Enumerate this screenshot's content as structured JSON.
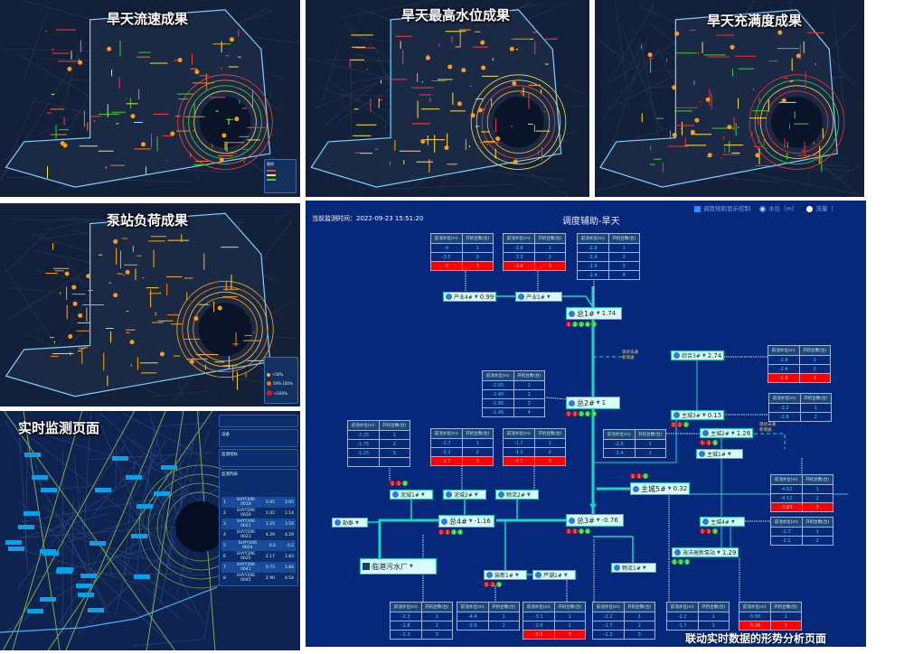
{
  "panels": {
    "flow": {
      "title": "旱天流速成果",
      "legend_title": "图例",
      "line_colors": [
        "#ff3b3b",
        "#ffe23a",
        "#3ad23a"
      ]
    },
    "level": {
      "title": "旱天最高水位成果"
    },
    "fill": {
      "title": "旱天充满度成果"
    },
    "pump": {
      "title": "泵站负荷成果",
      "legend_items": [
        "<50%",
        "50%-100%",
        ">100%"
      ]
    },
    "realtime": {
      "title": "实时监测页面",
      "sections": {
        "device": "设备",
        "indicator": "监测指标",
        "list": "监测列表"
      },
      "list_rows": [
        {
          "no": "1",
          "id": "SHYY206 0010",
          "a": "3.05",
          "b": "3.05"
        },
        {
          "no": "2",
          "id": "SHYY206 0020",
          "a": "1.02",
          "b": "1.14"
        },
        {
          "no": "3",
          "id": "SHYY206 0021",
          "a": "1.25",
          "b": "3.54"
        },
        {
          "no": "4",
          "id": "SHYY206 0023",
          "a": "4.29",
          "b": "4.29"
        },
        {
          "no": "5",
          "id": "SHYY206 0024",
          "a": "0.0",
          "b": "0.2"
        },
        {
          "no": "6",
          "id": "SHYY206 0025",
          "a": "2.17",
          "b": "2.83"
        },
        {
          "no": "7",
          "id": "SHYY206 0041",
          "a": "0.75",
          "b": "1.84"
        },
        {
          "no": "8",
          "id": "SHYY206 0045",
          "a": "2.90",
          "b": "4.54"
        }
      ],
      "legend_title": "图例"
    }
  },
  "dispatch": {
    "monitor_time_label": "当前监测时间：",
    "monitor_time": "2022-09-23 15:51:20",
    "title": "调度辅助-旱天",
    "controls": {
      "rule_display": "调度规则显示控制",
      "level": "水位（m）",
      "flow": "流量（"
    },
    "table_headers": [
      "前池水位(m)",
      "开机台数(台)"
    ],
    "tables": [
      {
        "station": "产业4#",
        "rows": [
          [
            "-4",
            "1"
          ],
          [
            "-3.5",
            "2"
          ],
          [
            "-3",
            "3"
          ]
        ],
        "alert_row": 2
      },
      {
        "station": "产业1#",
        "rows": [
          [
            "-3.8",
            "1"
          ],
          [
            "-3.3",
            "2"
          ],
          [
            "-2.8",
            "3"
          ]
        ],
        "alert_row": 2
      },
      {
        "station": "总1#",
        "rows": [
          [
            "-2.9",
            "1"
          ],
          [
            "-2.4",
            "2"
          ],
          [
            "-1.9",
            "3"
          ],
          [
            "-1.4",
            "4"
          ]
        ],
        "alert_row": null
      },
      {
        "station": "综合3#",
        "rows": [
          [
            "-2.9",
            "1"
          ],
          [
            "-2.4",
            "2"
          ],
          [
            "-1.9",
            "3"
          ]
        ],
        "alert_row": 2
      },
      {
        "station": "总2#",
        "rows": [
          [
            "-2.95",
            "1"
          ],
          [
            "-2.45",
            "2"
          ],
          [
            "-1.95",
            "3"
          ],
          [
            "-1.45",
            "4"
          ]
        ],
        "alert_row": null
      },
      {
        "station": "主城3#",
        "rows": [
          [
            "-3.3",
            "1"
          ],
          [
            "-2.8",
            "2"
          ]
        ],
        "alert_row": null
      },
      {
        "station": "泥城1#",
        "rows": [
          [
            "-2.25",
            "1"
          ],
          [
            "-1.75",
            "2"
          ],
          [
            "-1.25",
            "3"
          ],
          [
            "",
            ""
          ]
        ],
        "alert_row": null
      },
      {
        "station": "泥城2#",
        "rows": [
          [
            "-2.7",
            "1"
          ],
          [
            "-2.2",
            "2"
          ],
          [
            "-1.7",
            "3"
          ]
        ],
        "alert_row": 2
      },
      {
        "station": "物流2#",
        "rows": [
          [
            "-1.7",
            "1"
          ],
          [
            "-1.2",
            "2"
          ],
          [
            "-0.7",
            "3"
          ]
        ],
        "alert_row": 2
      },
      {
        "station": "主城2#",
        "rows": [
          [
            "-2.9",
            "1"
          ],
          [
            "-2.4",
            "2"
          ]
        ],
        "alert_row": null
      },
      {
        "station": "主城1#",
        "rows": [
          [
            "-4.63",
            "1"
          ],
          [
            "-4.13",
            "2"
          ],
          [
            "-3.63",
            "3"
          ]
        ],
        "alert_row": 2
      },
      {
        "station": "主城4#",
        "rows": [
          [
            "-2.7",
            "1"
          ],
          [
            "-2.2",
            "2"
          ]
        ],
        "alert_row": null
      },
      {
        "station": "总4#",
        "rows": [
          [
            "-2.3",
            "1"
          ],
          [
            "-1.8",
            "2"
          ],
          [
            "-1.3",
            "3"
          ]
        ],
        "alert_row": null
      },
      {
        "station": "装新1#",
        "rows": [
          [
            "-4.4",
            "1"
          ],
          [
            "-3.9",
            "2"
          ]
        ],
        "alert_row": null
      },
      {
        "station": "芦潮1#",
        "rows": [
          [
            "-3.1",
            "1"
          ],
          [
            "-2.6",
            "2"
          ],
          [
            "-2.1",
            "3"
          ]
        ],
        "alert_row": 2
      },
      {
        "station": "总3#",
        "rows": [
          [
            "-2.2",
            "1"
          ],
          [
            "-1.7",
            "2"
          ],
          [
            "-1.2",
            "3"
          ]
        ],
        "alert_row": null
      },
      {
        "station": "主城5#",
        "rows": [
          [
            "-2.2",
            "1"
          ],
          [
            "-1.7",
            "2"
          ]
        ],
        "alert_row": null
      },
      {
        "station": "海洋高新泵站",
        "rows": [
          [
            "-5.56",
            "1"
          ],
          [
            "-5.06",
            "2"
          ]
        ],
        "alert_row": 1
      }
    ],
    "nodes": [
      {
        "name": "产业4#",
        "value": "0.99",
        "lights": []
      },
      {
        "name": "产业1#",
        "value": "",
        "lights": []
      },
      {
        "name": "总1#",
        "value": "1.74",
        "lights": [
          "r",
          "g",
          "g",
          "g",
          "g"
        ]
      },
      {
        "name": "综合3#",
        "value": "2.74",
        "lights": []
      },
      {
        "name": "总2#",
        "value": "1",
        "lights": [
          "r",
          "r",
          "g",
          "g",
          "g"
        ]
      },
      {
        "name": "主城3#",
        "value": "0.15",
        "lights": [
          "r",
          "r",
          "g"
        ]
      },
      {
        "name": "主城2#",
        "value": "1.26",
        "lights": [
          "r",
          "r",
          "g"
        ]
      },
      {
        "name": "主城1#",
        "value": "",
        "lights": []
      },
      {
        "name": "主城5#",
        "value": "0.32",
        "lights": [
          "r",
          "r",
          "g"
        ]
      },
      {
        "name": "泥城1#",
        "value": "",
        "lights": [
          "r",
          "r",
          "g"
        ]
      },
      {
        "name": "泥城2#",
        "value": "",
        "lights": []
      },
      {
        "name": "物流2#",
        "value": "",
        "lights": []
      },
      {
        "name": "总3#",
        "value": "-0.76",
        "lights": [
          "r",
          "r",
          "g",
          "g"
        ]
      },
      {
        "name": "主城4#",
        "value": "",
        "lights": [
          "r",
          "r",
          "g"
        ]
      },
      {
        "name": "总4#",
        "value": "-1.16",
        "lights": [
          "r",
          "r",
          "g",
          "g"
        ]
      },
      {
        "name": "勒泰",
        "value": "",
        "lights": []
      },
      {
        "name": "装新1#",
        "value": "",
        "lights": [
          "r",
          "r",
          "g"
        ]
      },
      {
        "name": "芦潮1#",
        "value": "",
        "lights": []
      },
      {
        "name": "物流1#",
        "value": "",
        "lights": []
      },
      {
        "name": "海洋高新泵站",
        "value": "1.29",
        "lights": [
          "g",
          "g",
          "g"
        ]
      }
    ],
    "plant": "临港污水厂",
    "pipe_notes": [
      "现状未通",
      "新增通"
    ],
    "caption": "联动实时数据的形势分析页面",
    "colors": {
      "background": "#06287a",
      "pipe": "#19d6c8",
      "alert": "#ff0000",
      "pump_off": "#f01010",
      "pump_on": "#2bd12b"
    }
  }
}
